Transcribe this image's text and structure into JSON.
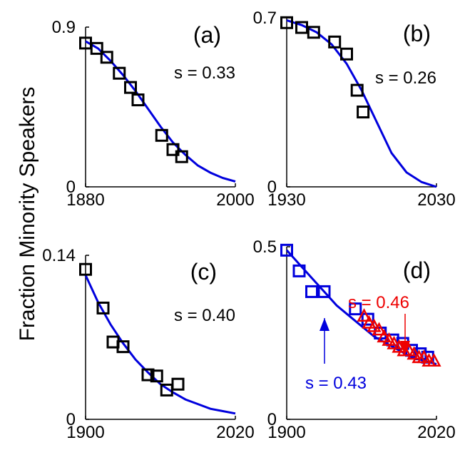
{
  "ylabel": "Fraction Minority Speakers",
  "chart_data": [
    {
      "type": "scatter",
      "panel_label": "(a)",
      "annotation": "s = 0.33",
      "xlim": [
        1880,
        2000
      ],
      "ylim": [
        0,
        0.9
      ],
      "x_tick_labels": [
        "1880",
        "2000"
      ],
      "y_tick_labels": [
        "0",
        "0.9"
      ],
      "series": [
        {
          "kind": "points",
          "marker": "square",
          "color": "#000000",
          "x": [
            1880,
            1889,
            1897,
            1907,
            1916,
            1922,
            1941,
            1950,
            1957
          ],
          "y": [
            0.81,
            0.78,
            0.73,
            0.64,
            0.56,
            0.49,
            0.29,
            0.21,
            0.17
          ]
        },
        {
          "kind": "line",
          "color": "#0000dd",
          "x": [
            1880,
            1890,
            1900,
            1910,
            1920,
            1930,
            1940,
            1950,
            1960,
            1970,
            1980,
            1990,
            2000
          ],
          "y": [
            0.82,
            0.78,
            0.71,
            0.63,
            0.54,
            0.44,
            0.34,
            0.25,
            0.18,
            0.12,
            0.08,
            0.05,
            0.03
          ]
        }
      ]
    },
    {
      "type": "scatter",
      "panel_label": "(b)",
      "annotation": "s = 0.26",
      "xlim": [
        1930,
        2030
      ],
      "ylim": [
        0,
        0.7
      ],
      "x_tick_labels": [
        "1930",
        "2030"
      ],
      "y_tick_labels": [
        "0",
        "0.7"
      ],
      "series": [
        {
          "kind": "points",
          "marker": "square",
          "color": "#000000",
          "x": [
            1930,
            1940,
            1948,
            1962,
            1970,
            1977,
            1981
          ],
          "y": [
            0.68,
            0.66,
            0.64,
            0.6,
            0.55,
            0.4,
            0.31
          ]
        },
        {
          "kind": "line",
          "color": "#0000dd",
          "x": [
            1930,
            1940,
            1950,
            1960,
            1970,
            1980,
            1990,
            2000,
            2010,
            2020,
            2030
          ],
          "y": [
            0.69,
            0.67,
            0.64,
            0.59,
            0.51,
            0.4,
            0.27,
            0.14,
            0.06,
            0.02,
            0.0
          ]
        }
      ]
    },
    {
      "type": "scatter",
      "panel_label": "(c)",
      "annotation": "s = 0.40",
      "xlim": [
        1900,
        2020
      ],
      "ylim": [
        0,
        0.14
      ],
      "x_tick_labels": [
        "1900",
        "2020"
      ],
      "y_tick_labels": [
        "0",
        "0.14"
      ],
      "series": [
        {
          "kind": "points",
          "marker": "square",
          "color": "#000000",
          "x": [
            1900,
            1914,
            1922,
            1930,
            1950,
            1957,
            1965,
            1974
          ],
          "y": [
            0.128,
            0.095,
            0.066,
            0.062,
            0.038,
            0.037,
            0.025,
            0.03
          ]
        },
        {
          "kind": "line",
          "color": "#0000dd",
          "x": [
            1900,
            1910,
            1920,
            1930,
            1940,
            1950,
            1960,
            1970,
            1980,
            1990,
            2000,
            2010,
            2020
          ],
          "y": [
            0.123,
            0.1,
            0.081,
            0.065,
            0.051,
            0.04,
            0.03,
            0.023,
            0.017,
            0.013,
            0.009,
            0.007,
            0.005
          ]
        }
      ]
    },
    {
      "type": "scatter",
      "panel_label": "(d)",
      "annotation": "s = 0.43",
      "annotation_2": "s = 0.46",
      "xlim": [
        1900,
        2020
      ],
      "ylim": [
        0,
        0.5
      ],
      "x_tick_labels": [
        "1900",
        "2020"
      ],
      "y_tick_labels": [
        "0",
        "0.5"
      ],
      "series": [
        {
          "kind": "points",
          "marker": "square",
          "color": "#0000dd",
          "x": [
            1900,
            1910,
            1920,
            1930,
            1955,
            1965,
            1975,
            1985,
            1993,
            2000,
            2007,
            2013
          ],
          "y": [
            0.49,
            0.43,
            0.37,
            0.37,
            0.32,
            0.29,
            0.25,
            0.23,
            0.22,
            0.2,
            0.19,
            0.18
          ]
        },
        {
          "kind": "points",
          "marker": "triangle",
          "color": "#ee0000",
          "x": [
            1962,
            1966,
            1970,
            1974,
            1978,
            1982,
            1986,
            1990,
            1994,
            1998,
            2002,
            2006,
            2010,
            2014,
            2018
          ],
          "y": [
            0.3,
            0.28,
            0.27,
            0.26,
            0.24,
            0.23,
            0.22,
            0.21,
            0.2,
            0.2,
            0.19,
            0.18,
            0.18,
            0.17,
            0.17
          ]
        },
        {
          "kind": "line",
          "color": "#0000dd",
          "x": [
            1900,
            1910,
            1920,
            1930,
            1940,
            1950,
            1960,
            1970,
            1980,
            1990,
            2000,
            2010,
            2020
          ],
          "y": [
            0.49,
            0.45,
            0.41,
            0.37,
            0.33,
            0.3,
            0.27,
            0.24,
            0.22,
            0.2,
            0.18,
            0.17,
            0.16
          ]
        }
      ]
    }
  ]
}
